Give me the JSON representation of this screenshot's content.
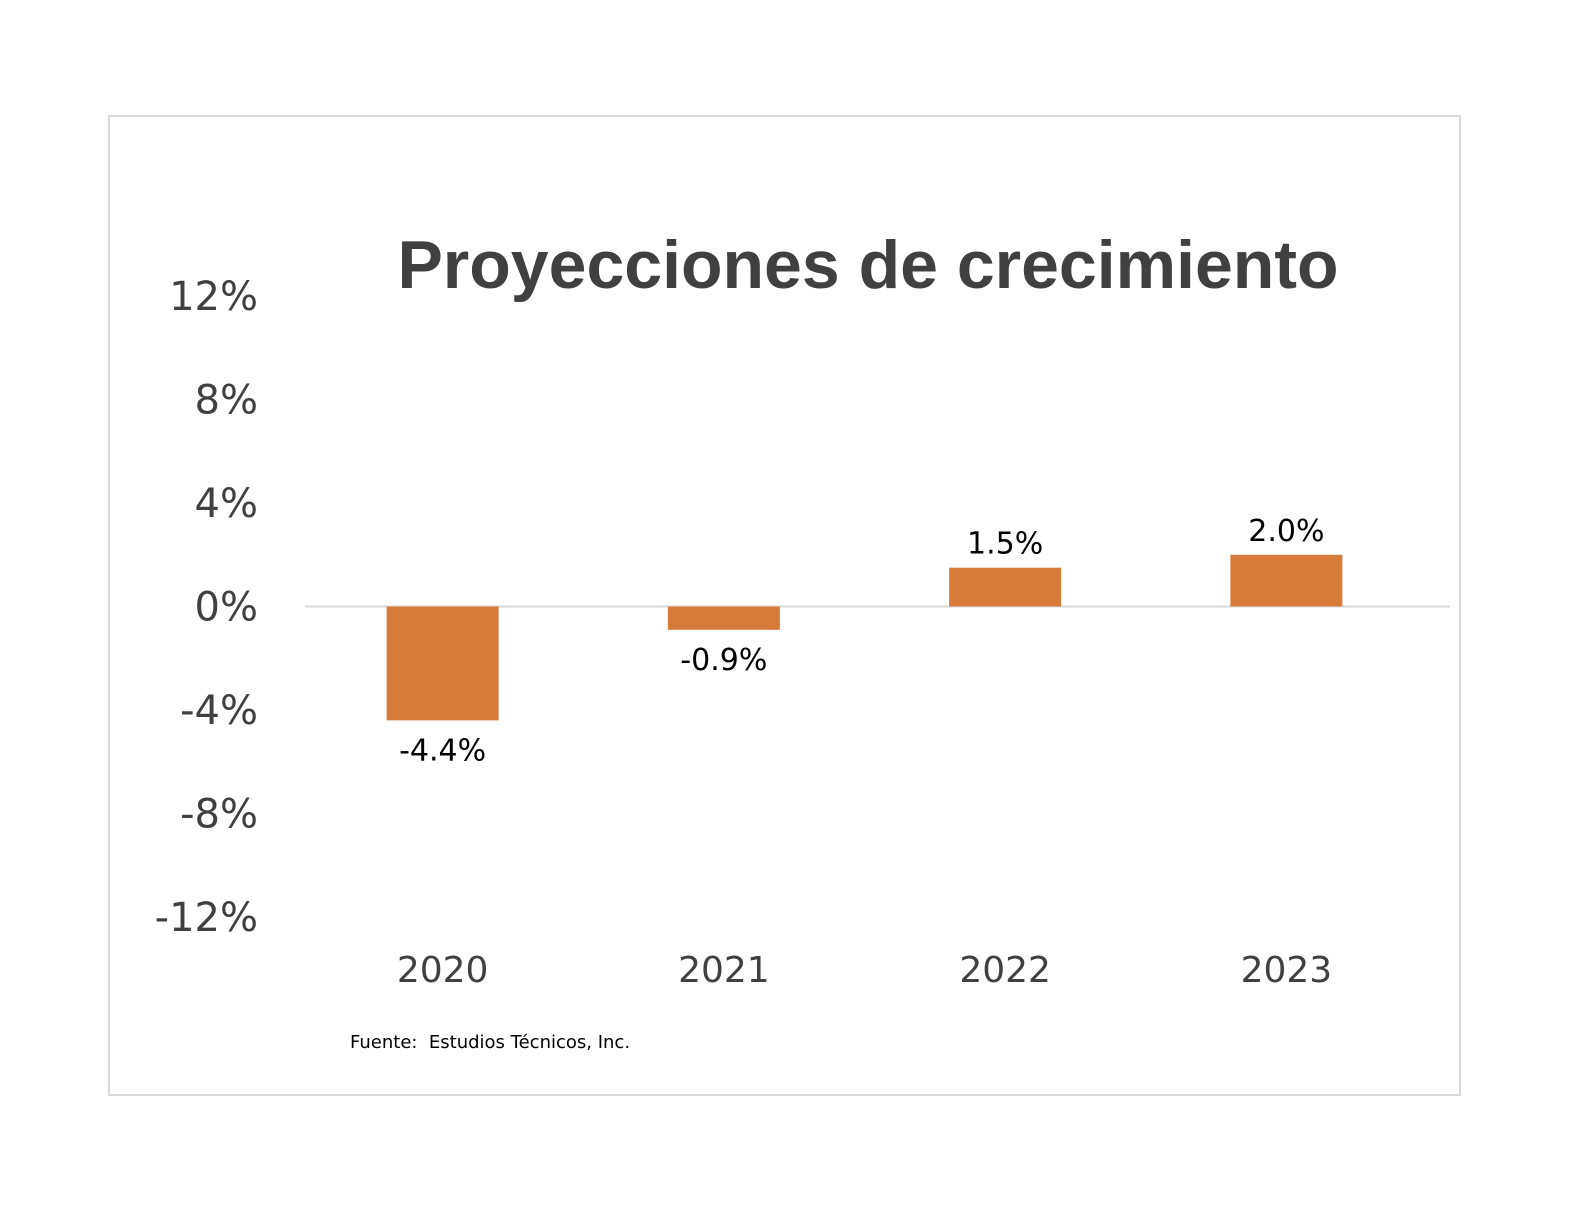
{
  "chart_data": {
    "type": "bar",
    "title": "Proyecciones de crecimiento",
    "xlabel": "",
    "ylabel": "",
    "categories": [
      "2020",
      "2021",
      "2022",
      "2023"
    ],
    "values": [
      -4.4,
      -0.9,
      1.5,
      2.0
    ],
    "data_labels": [
      "-4.4%",
      "-0.9%",
      "1.5%",
      "2.0%"
    ],
    "ylim": [
      -12,
      12
    ],
    "yticks": [
      12,
      8,
      4,
      0,
      -4,
      -8,
      -12
    ],
    "ytick_labels": [
      "12%",
      "8%",
      "4%",
      "0%",
      "-4%",
      "-8%",
      "-12%"
    ],
    "grid": false,
    "legend": "none",
    "bar_color": "#D67B3A",
    "zero_line_color": "#D9D9D9",
    "source_note": "Fuente:  Estudios Técnicos, Inc."
  }
}
